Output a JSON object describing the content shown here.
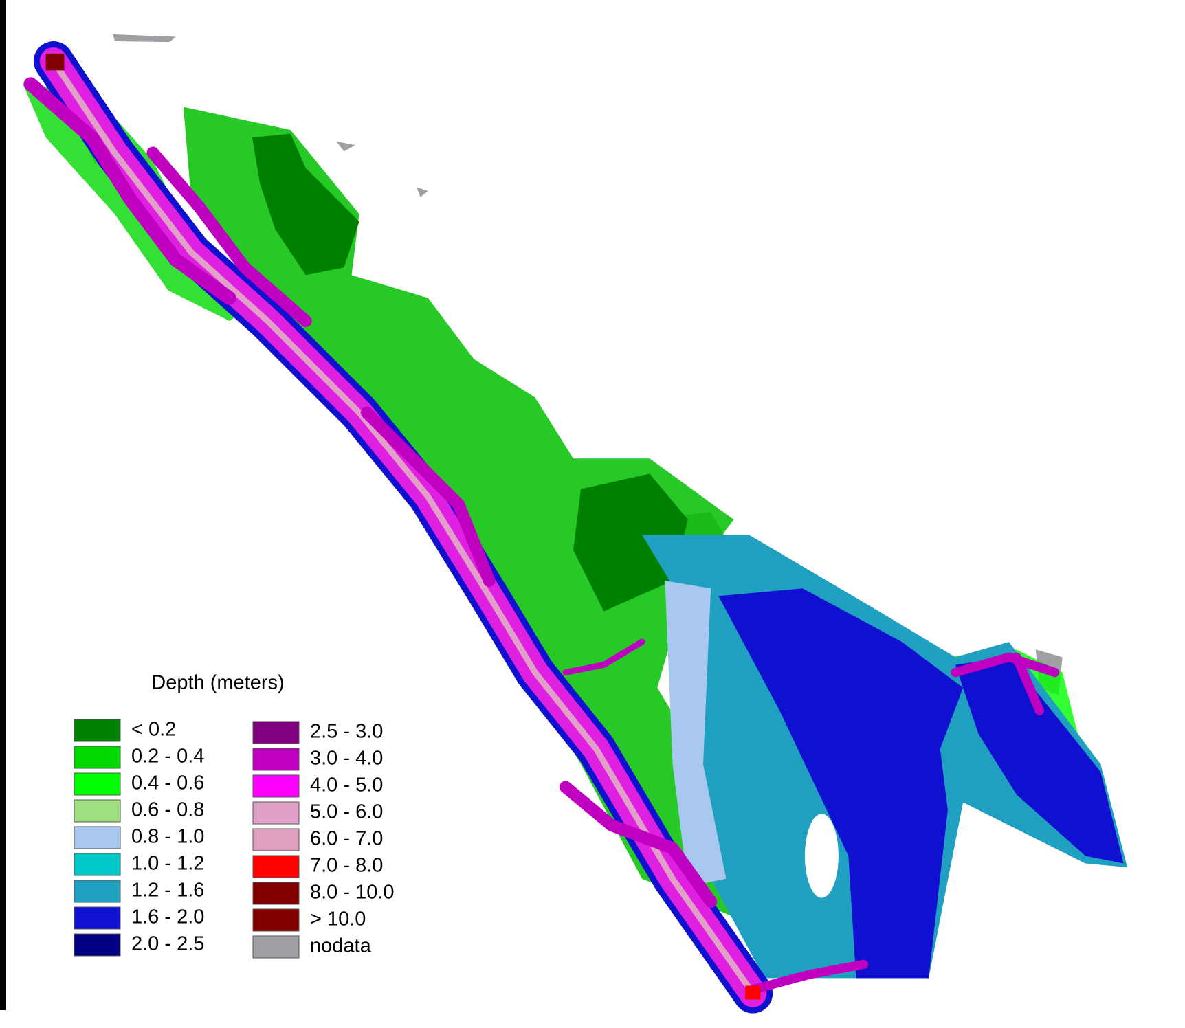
{
  "legend": {
    "title": "Depth (meters)",
    "items": [
      {
        "label": "< 0.2",
        "color": "#008000"
      },
      {
        "label": "0.2 - 0.4",
        "color": "#00d800"
      },
      {
        "label": "0.4 - 0.6",
        "color": "#00ff00"
      },
      {
        "label": "0.6 - 0.8",
        "color": "#a0e080"
      },
      {
        "label": "0.8 - 1.0",
        "color": "#a8c8f0"
      },
      {
        "label": "1.0 - 1.2",
        "color": "#00c8c8"
      },
      {
        "label": "1.2 - 1.6",
        "color": "#20a0c0"
      },
      {
        "label": "1.6 - 2.0",
        "color": "#1010d0"
      },
      {
        "label": "2.0 - 2.5",
        "color": "#000080"
      },
      {
        "label": "2.5 - 3.0",
        "color": "#800080"
      },
      {
        "label": "3.0 - 4.0",
        "color": "#c000c0"
      },
      {
        "label": "4.0 - 5.0",
        "color": "#ff00ff"
      },
      {
        "label": "5.0 - 6.0",
        "color": "#e0a0c8"
      },
      {
        "label": "6.0 - 7.0",
        "color": "#e0a0c0"
      },
      {
        "label": "7.0 - 8.0",
        "color": "#ff0000"
      },
      {
        "label": "8.0 - 10.0",
        "color": "#800000"
      },
      {
        "label": "> 10.0",
        "color": "#800000"
      },
      {
        "label": "nodata",
        "color": "#a0a0a4"
      }
    ]
  }
}
